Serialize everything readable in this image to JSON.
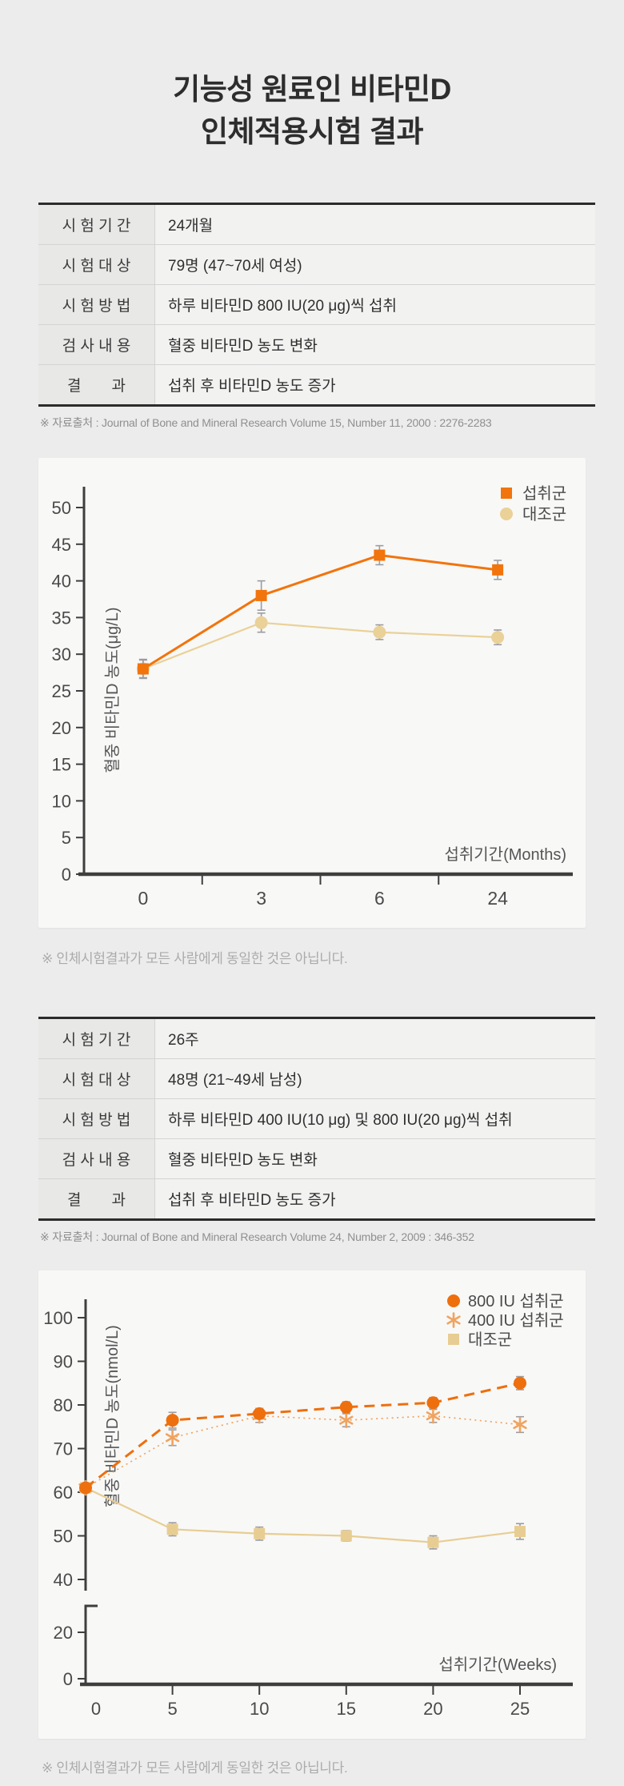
{
  "page": {
    "title_line1": "기능성 원료인 비타민D",
    "title_line2": "인체적용시험 결과",
    "disclaimer": "※ 인체시험결과가 모든 사람에게 동일한 것은 아닙니다."
  },
  "colors": {
    "accent_orange": "#EF7512",
    "light_orange": "#F0A35F",
    "tan": "#EAD197",
    "axis": "#3E3E3E",
    "tick_label": "#4A4A4A",
    "error_bar": "#9C9CA2"
  },
  "study1": {
    "table": {
      "rows": [
        {
          "label": "시 험 기 간",
          "value": "24개월"
        },
        {
          "label": "시 험 대 상",
          "value": "79명 (47~70세 여성)"
        },
        {
          "label": "시 험 방 법",
          "value": "하루 비타민D 800 IU(20 μg)씩 섭취"
        },
        {
          "label": "검 사 내 용",
          "value": "혈중 비타민D 농도 변화"
        },
        {
          "label": "결　　과",
          "value": "섭취 후 비타민D 농도 증가"
        }
      ]
    },
    "source": "※ 자료출처 : Journal of Bone and Mineral Research Volume 15, Number 11, 2000 : 2276-2283"
  },
  "study2": {
    "table": {
      "rows": [
        {
          "label": "시 험 기 간",
          "value": "26주"
        },
        {
          "label": "시 험 대 상",
          "value": "48명 (21~49세 남성)"
        },
        {
          "label": "시 험 방 법",
          "value": "하루 비타민D 400 IU(10 μg) 및 800 IU(20 μg)씩 섭취"
        },
        {
          "label": "검 사 내 용",
          "value": "혈중 비타민D 농도 변화"
        },
        {
          "label": "결　　과",
          "value": "섭취 후 비타민D 농도 증가"
        }
      ]
    },
    "source": "※ 자료출처 : Journal of Bone and Mineral Research Volume 24, Number 2, 2009 : 346-352"
  },
  "chart_data": [
    {
      "type": "line",
      "title": "",
      "xlabel": "섭취기간(Months)",
      "ylabel": "혈중 비타민D 농도(μg/L)",
      "x_categories": [
        "0",
        "3",
        "6",
        "24"
      ],
      "ylim": [
        0,
        52
      ],
      "yticks": [
        0,
        5,
        10,
        15,
        20,
        25,
        30,
        35,
        40,
        45,
        50
      ],
      "grid": false,
      "legend_position": "top-right",
      "series": [
        {
          "name": "섭취군",
          "marker": "square",
          "line_style": "solid",
          "color": "#F2740D",
          "values": [
            28,
            38,
            43.5,
            41.5
          ],
          "error": [
            1.3,
            2.0,
            1.3,
            1.3
          ]
        },
        {
          "name": "대조군",
          "marker": "circle",
          "line_style": "solid",
          "color": "#EAD197",
          "values": [
            28,
            34.3,
            33,
            32.3
          ],
          "error": [
            1.2,
            1.3,
            1.0,
            1.0
          ]
        }
      ]
    },
    {
      "type": "line",
      "title": "",
      "xlabel": "섭취기간(Weeks)",
      "ylabel": "혈중 비타민D 농도(nmol/L)",
      "x": [
        0,
        5,
        10,
        15,
        20,
        25
      ],
      "axis_break": true,
      "upper_yticks": [
        40,
        50,
        60,
        70,
        80,
        90,
        100
      ],
      "lower_yticks": [
        0,
        20
      ],
      "grid": false,
      "legend_position": "top-right",
      "series": [
        {
          "name": "800 IU 섭취군",
          "marker": "circle",
          "line_style": "dashed",
          "color": "#EE6F0E",
          "values": [
            61,
            76.5,
            78,
            79.5,
            80.5,
            85
          ],
          "error": [
            0,
            1.8,
            1.2,
            1.2,
            1.2,
            1.5
          ]
        },
        {
          "name": "400 IU 섭취군",
          "marker": "asterisk",
          "line_style": "dotted",
          "color": "#F0A35F",
          "values": [
            61,
            72.5,
            77.5,
            76.5,
            77.5,
            75.5
          ],
          "error": [
            0,
            1.8,
            1.5,
            1.5,
            1.5,
            1.8
          ]
        },
        {
          "name": "대조군",
          "marker": "square",
          "line_style": "solid",
          "color": "#E8CD92",
          "values": [
            61,
            51.5,
            50.5,
            50,
            48.5,
            51
          ],
          "error": [
            0,
            1.5,
            1.5,
            1.2,
            1.5,
            1.8
          ]
        }
      ]
    }
  ]
}
